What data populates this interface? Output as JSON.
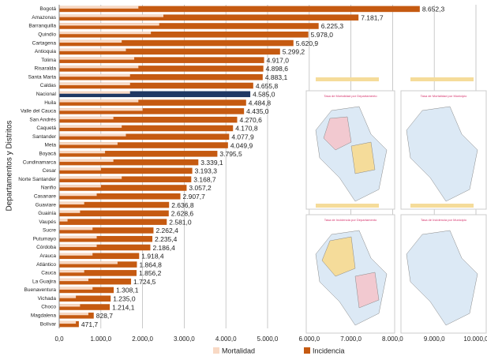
{
  "chart_data": {
    "type": "hbar",
    "y_axis_label": "Departamentos y Distritos",
    "categories": [
      "Bogotá",
      "Amazonas",
      "Barranquilla",
      "Quindío",
      "Cartagena",
      "Antioquia",
      "Tolima",
      "Risaralda",
      "Santa Marta",
      "Caldas",
      "Nacional",
      "Huila",
      "Valle del Cauca",
      "San Andrés",
      "Caquetá",
      "Santander",
      "Meta",
      "Boyacá",
      "Cundinamarca",
      "Cesar",
      "Norte Santander",
      "Nariño",
      "Casanare",
      "Guaviare",
      "Guainía",
      "Vaupés",
      "Sucre",
      "Putumayo",
      "Córdoba",
      "Arauca",
      "Atlántico",
      "Cauca",
      "La Guajira",
      "Buenaventura",
      "Vichada",
      "Choco",
      "Magdalena",
      "Bolívar"
    ],
    "series": [
      {
        "name": "Mortalidad",
        "color": "#f8d9c4",
        "values": [
          1900,
          2500,
          2400,
          2200,
          1500,
          1600,
          1800,
          1900,
          1700,
          1700,
          1700,
          1900,
          2000,
          1300,
          1500,
          1600,
          1400,
          1100,
          1300,
          1000,
          1500,
          1000,
          900,
          600,
          500,
          200,
          800,
          900,
          900,
          800,
          1400,
          600,
          700,
          800,
          400,
          500,
          700,
          400
        ]
      },
      {
        "name": "Incidencia",
        "color": "#c55a11",
        "values": [
          8652.3,
          7181.7,
          6225.3,
          5978.0,
          5620.9,
          5299.2,
          4917.0,
          4898.6,
          4883.1,
          4655.8,
          4585.0,
          4484.8,
          4435.0,
          4270.6,
          4170.8,
          4077.9,
          4049.9,
          3795.5,
          3339.1,
          3193.3,
          3168.7,
          3057.2,
          2907.7,
          2636.8,
          2628.6,
          2581.0,
          2262.4,
          2235.4,
          2186.4,
          1918.4,
          1864.8,
          1856.2,
          1724.5,
          1308.1,
          1235.0,
          1214.1,
          828.7,
          471.7
        ],
        "value_labels": [
          "8.652,3",
          "7.181,7",
          "6.225,3",
          "5.978,0",
          "5.620,9",
          "5.299,2",
          "4.917,0",
          "4.898,6",
          "4.883,1",
          "4.655,8",
          "4.585,0",
          "4.484,8",
          "4.435,0",
          "4.270,6",
          "4.170,8",
          "4.077,9",
          "4.049,9",
          "3.795,5",
          "3.339,1",
          "3.193,3",
          "3.168,7",
          "3.057,2",
          "2.907,7",
          "2.636,8",
          "2.628,6",
          "2.581,0",
          "2.262,4",
          "2.235,4",
          "2.186,4",
          "1.918,4",
          "1.864,8",
          "1.856,2",
          "1.724,5",
          "1.308,1",
          "1.235,0",
          "1.214,1",
          "828,7",
          "471,7"
        ]
      }
    ],
    "highlight": "Nacional",
    "highlight_color": "#1f3864",
    "xlim": [
      0,
      10000
    ],
    "xticks": [
      {
        "value": 0,
        "label": "0,0"
      },
      {
        "value": 1000,
        "label": "1.000,0"
      },
      {
        "value": 2000,
        "label": "2.000,0"
      },
      {
        "value": 3000,
        "label": "3.000,0"
      },
      {
        "value": 4000,
        "label": "4.000,0"
      },
      {
        "value": 5000,
        "label": "5.000,0"
      },
      {
        "value": 6000,
        "label": "6.000,0"
      },
      {
        "value": 7000,
        "label": "7.000,0"
      },
      {
        "value": 8000,
        "label": "8.000,0"
      },
      {
        "value": 9000,
        "label": "9.000,0"
      },
      {
        "value": 10000,
        "label": "10.000,0"
      }
    ],
    "grid": true,
    "annotations": [
      "Tasa de Mortalidad por Departamento",
      "Tasa de Mortalidad por Municipio",
      "Tasa de Incidencia por Departamento",
      "Tasa de Incidencia por Municipio"
    ]
  }
}
